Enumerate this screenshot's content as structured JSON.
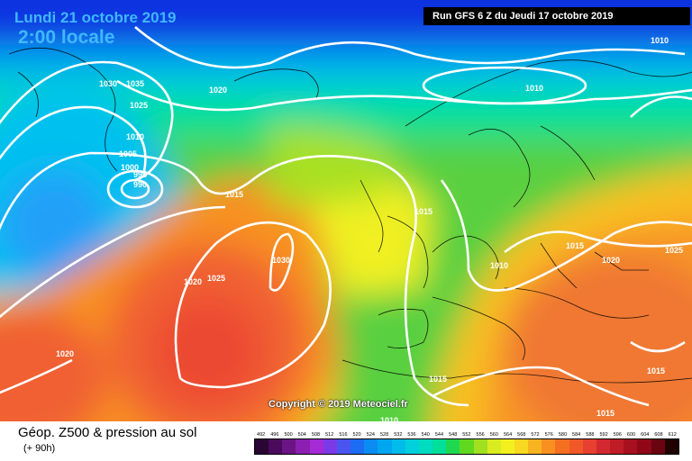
{
  "header": {
    "date": "Lundi 21 octobre 2019",
    "time": "2:00 locale",
    "run": "Run GFS 6 Z du Jeudi 17 octobre 2019"
  },
  "copyright": "Copyright © 2019 Meteociel.fr",
  "footer": {
    "title": "Géop. Z500 & pression au sol",
    "subtitle": "(+ 90h)"
  },
  "legend": {
    "values": [
      "492",
      "496",
      "500",
      "504",
      "508",
      "512",
      "516",
      "520",
      "524",
      "528",
      "532",
      "536",
      "540",
      "544",
      "548",
      "552",
      "556",
      "560",
      "564",
      "568",
      "572",
      "576",
      "580",
      "584",
      "588",
      "592",
      "596",
      "600",
      "604",
      "608",
      "612"
    ],
    "colors": [
      "#2a0633",
      "#4b0b5c",
      "#6a1485",
      "#8a1fb0",
      "#a52bd6",
      "#7a3ae6",
      "#4a55f0",
      "#1d6cf4",
      "#0a8cf2",
      "#00a6f0",
      "#00bcea",
      "#00d0dc",
      "#00dcc0",
      "#00e09a",
      "#20d850",
      "#60d820",
      "#a0e020",
      "#d8ec20",
      "#f4f020",
      "#f8d820",
      "#f8b420",
      "#f89020",
      "#f47020",
      "#f05828",
      "#e84030",
      "#d42830",
      "#c01c28",
      "#a81020",
      "#900818",
      "#6a0410",
      "#200000"
    ]
  },
  "isobars": [
    {
      "text": "1030"
    },
    {
      "text": "1035"
    },
    {
      "text": "1020"
    },
    {
      "text": "1025"
    },
    {
      "text": "1010"
    },
    {
      "text": "1005"
    },
    {
      "text": "1000"
    },
    {
      "text": "995"
    },
    {
      "text": "990"
    },
    {
      "text": "1015"
    },
    {
      "text": "1030"
    },
    {
      "text": "1025"
    },
    {
      "text": "1020"
    },
    {
      "text": "1020"
    },
    {
      "text": "1015"
    },
    {
      "text": "1010"
    },
    {
      "text": "1010"
    },
    {
      "text": "1010"
    },
    {
      "text": "1015"
    },
    {
      "text": "1020"
    },
    {
      "text": "1025"
    },
    {
      "text": "1015"
    },
    {
      "text": "1015"
    },
    {
      "text": "1015"
    },
    {
      "text": "1010"
    }
  ]
}
